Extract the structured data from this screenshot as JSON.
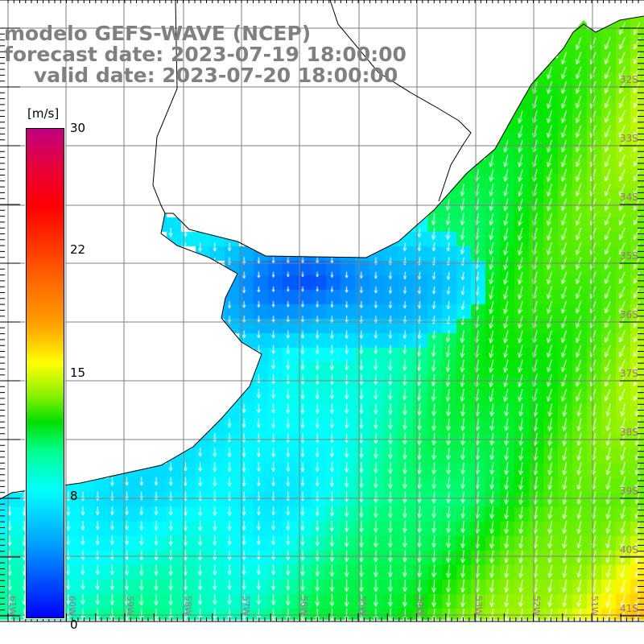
{
  "title": {
    "model": "modelo GEFS-WAVE (NCEP)",
    "forecast": "forecast date: 2023-07-19 18:00:00",
    "valid": "valid date: 2023-07-20 18:00:00"
  },
  "colorbar": {
    "unit": "[m/s]",
    "labels": [
      "30",
      "22",
      "15",
      "8",
      "0"
    ],
    "range": [
      0,
      30
    ],
    "colors": {
      "max": "#c0007f",
      "red": "#ff0000",
      "yellow": "#ffff00",
      "green": "#00e000",
      "cyan": "#00ffff",
      "min": "#0000ff"
    }
  },
  "axes": {
    "lon_labels": [
      "61W",
      "60W",
      "59W",
      "58W",
      "57W",
      "56W",
      "55W",
      "54W",
      "53W",
      "52W",
      "51W"
    ],
    "lat_labels": [
      "32S",
      "33S",
      "34S",
      "35S",
      "36S",
      "37S",
      "38S",
      "39S",
      "40S",
      "41S"
    ]
  },
  "colors": {
    "land": "#ffffff",
    "coast": "#000000",
    "grid": "#808080",
    "arrow": "#ffffff",
    "title": "#808080"
  }
}
